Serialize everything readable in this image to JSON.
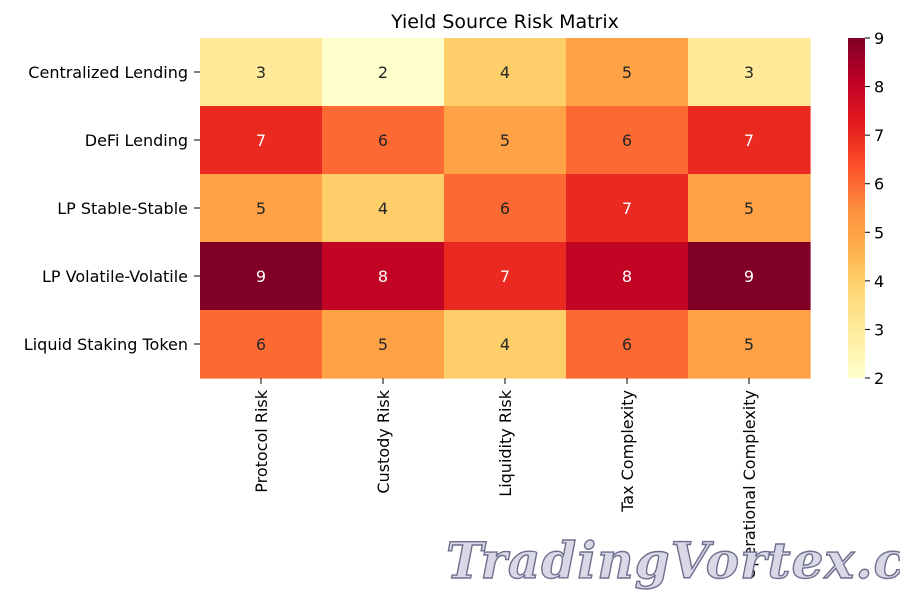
{
  "chart_data": {
    "type": "heatmap",
    "title": "Yield Source Risk Matrix",
    "rows": [
      "Centralized Lending",
      "DeFi Lending",
      "LP Stable-Stable",
      "LP Volatile-Volatile",
      "Liquid Staking Token"
    ],
    "columns": [
      "Protocol Risk",
      "Custody Risk",
      "Liquidity Risk",
      "Tax Complexity",
      "Operational Complexity"
    ],
    "values": [
      [
        3,
        2,
        4,
        5,
        3
      ],
      [
        7,
        6,
        5,
        6,
        7
      ],
      [
        5,
        4,
        6,
        7,
        5
      ],
      [
        9,
        8,
        7,
        8,
        9
      ],
      [
        6,
        5,
        4,
        6,
        5
      ]
    ],
    "annotated": true,
    "colormap": "YlOrRd",
    "colorbar": {
      "min": 2,
      "max": 9,
      "ticks": [
        2,
        3,
        4,
        5,
        6,
        7,
        8,
        9
      ],
      "placement": "right"
    }
  },
  "watermark": {
    "text": "TradingVortex.com"
  }
}
